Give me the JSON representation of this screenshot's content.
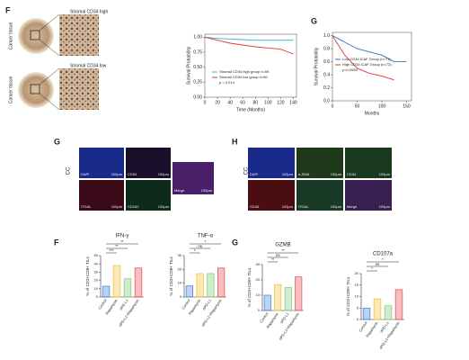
{
  "panel_f_top": {
    "label": "F",
    "tissues": [
      {
        "title": "Stromal CD34 high",
        "side": "Cancer tissue"
      },
      {
        "title": "Stromal CD34 low",
        "side": "Cancer tissue"
      }
    ]
  },
  "panel_g_top": {
    "label": "G"
  },
  "chart_data": [
    {
      "type": "line",
      "x_label": "Time (Months)",
      "y_label": "Survival Probability",
      "annotation": "p = 0.014",
      "x": [
        0,
        20,
        40,
        60,
        80,
        100,
        120,
        140
      ],
      "series": [
        {
          "name": "Stromal CD34 high group n=59",
          "color": "#2bb5c4",
          "values": [
            1,
            0.98,
            0.97,
            0.96,
            0.95,
            0.95,
            0.95,
            0.95
          ]
        },
        {
          "name": "Stromal CD34 low group n=60",
          "color": "#e8333a",
          "values": [
            1,
            0.95,
            0.9,
            0.87,
            0.84,
            0.82,
            0.8,
            0.72
          ]
        }
      ],
      "xlim": [
        0,
        145
      ],
      "ylim": [
        0,
        1.05
      ],
      "xticks": [
        0,
        20,
        40,
        60,
        80,
        100,
        120,
        140
      ],
      "yticks": [
        {
          "value": 0,
          "label": "0.00"
        },
        {
          "value": 0.25,
          "label": "0.25"
        },
        {
          "value": 0.5,
          "label": "0.50"
        },
        {
          "value": 0.75,
          "label": "0.75"
        },
        {
          "value": 1,
          "label": "1.00"
        }
      ]
    },
    {
      "type": "line",
      "x_label": "Months",
      "y_label": "Survival Probability",
      "annotation": "p=0.0065",
      "x": [
        0,
        25,
        50,
        75,
        100,
        125,
        150
      ],
      "series": [
        {
          "name": "Low CD34 iCAF Group (n=71)",
          "color": "#2f6fd0",
          "values": [
            1,
            0.9,
            0.8,
            0.75,
            0.7,
            0.6,
            0.6
          ]
        },
        {
          "name": "High CD34 iCAF Group (n=72)",
          "color": "#e8333a",
          "values": [
            1,
            0.7,
            0.5,
            0.42,
            0.38,
            0.32,
            null
          ]
        }
      ],
      "xlim": [
        0,
        160
      ],
      "ylim": [
        0,
        1.05
      ],
      "xticks": [
        0,
        50,
        100,
        150
      ],
      "yticks": [
        {
          "value": 0,
          "label": "0.0"
        },
        {
          "value": 0.2,
          "label": "0.2"
        },
        {
          "value": 0.4,
          "label": "0.4"
        },
        {
          "value": 0.6,
          "label": "0.6"
        },
        {
          "value": 0.8,
          "label": "0.8"
        },
        {
          "value": 1,
          "label": "1.0"
        }
      ]
    },
    {
      "type": "bar",
      "title": "IFN-γ",
      "y_label": "% of CD3+CD8+ TILs",
      "categories": [
        "Control",
        "Rapamycin",
        "αPD-L1",
        "αPD-L1+Rapamycin"
      ],
      "values": [
        13,
        38,
        22,
        35
      ],
      "colors": [
        "#3d7fd6",
        "#f2c12e",
        "#7bc96f",
        "#e8464a"
      ],
      "ylim": [
        0,
        50
      ],
      "yticks": [
        0,
        10,
        20,
        30,
        40,
        50
      ],
      "annotations": [
        "**",
        "**",
        "***"
      ]
    },
    {
      "type": "bar",
      "title": "TNF-α",
      "y_label": "% of CD3+CD8+ TILs",
      "categories": [
        "Control",
        "Rapamycin",
        "αPD-L1",
        "αPD-L1+Rapamycin"
      ],
      "values": [
        8,
        17,
        17,
        21
      ],
      "colors": [
        "#3d7fd6",
        "#f2c12e",
        "#7bc96f",
        "#e8464a"
      ],
      "ylim": [
        0,
        30
      ],
      "yticks": [
        0,
        10,
        20,
        30
      ],
      "annotations": [
        "*",
        "ns",
        "*"
      ]
    },
    {
      "type": "bar",
      "title": "GZMB",
      "y_label": "% of CD3+CD8+ TILs",
      "categories": [
        "Control",
        "Rapamycin",
        "αPD-L1",
        "αPD-L1+Rapamycin"
      ],
      "values": [
        10,
        17,
        15,
        22
      ],
      "colors": [
        "#3d7fd6",
        "#f2c12e",
        "#7bc96f",
        "#e8464a"
      ],
      "ylim": [
        0,
        30
      ],
      "yticks": [
        0,
        10,
        20,
        30
      ],
      "annotations": [
        "**",
        "ns",
        "**"
      ]
    },
    {
      "type": "bar",
      "title": "CD107a",
      "y_label": "% of CD3+CD8+ TILs",
      "categories": [
        "Control",
        "Rapamycin",
        "αPD-L1",
        "αPD-L1+Rapamycin"
      ],
      "values": [
        5,
        9,
        6,
        13
      ],
      "colors": [
        "#3d7fd6",
        "#f2c12e",
        "#7bc96f",
        "#e8464a"
      ],
      "ylim": [
        0,
        20
      ],
      "yticks": [
        0,
        5,
        10,
        15,
        20
      ],
      "annotations": [
        "*",
        "ns",
        "*"
      ]
    }
  ],
  "panel_g_if": {
    "label": "G",
    "group": "CC",
    "tiles": [
      {
        "marker": "DAPI",
        "scale": "100μm"
      },
      {
        "marker": "CD63",
        "scale": "100μm"
      },
      {
        "marker": "Merge",
        "scale": "100μm"
      },
      {
        "marker": "ITGAL",
        "scale": "100μm"
      },
      {
        "marker": "CD162",
        "scale": "100μm"
      }
    ]
  },
  "panel_h_if": {
    "label": "H",
    "group": "CC",
    "tiles": [
      {
        "marker": "DAPI",
        "scale": "100μm"
      },
      {
        "marker": "α-SMA",
        "scale": "100μm"
      },
      {
        "marker": "CD34",
        "scale": "100μm"
      },
      {
        "marker": "CD45",
        "scale": "100μm"
      },
      {
        "marker": "ITGAL",
        "scale": "100μm"
      },
      {
        "marker": "Merge",
        "scale": "100μm"
      }
    ]
  },
  "bar_labels": [
    "F",
    "G"
  ]
}
